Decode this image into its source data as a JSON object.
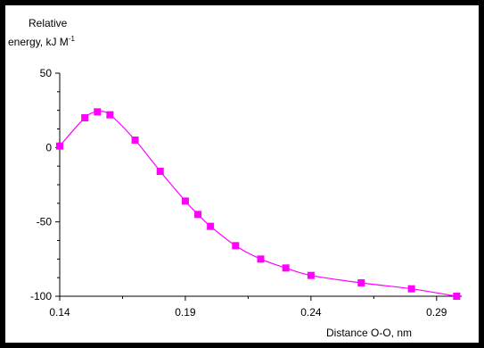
{
  "chart_data": {
    "type": "line",
    "ylabel_line1": "Relative",
    "ylabel_line2_main": "energy, kJ M",
    "ylabel_line2_sup": "-1",
    "xlabel": "Distance O-O, nm",
    "xlim": [
      0.14,
      0.3
    ],
    "ylim": [
      -100,
      50
    ],
    "x_ticks": [
      0.14,
      0.19,
      0.24,
      0.29
    ],
    "x_tick_labels": [
      "0.14",
      "0.19",
      "0.24",
      "0.29"
    ],
    "y_ticks": [
      50,
      0,
      -50,
      -100
    ],
    "y_tick_labels": [
      "50",
      "0",
      "-50",
      "-100"
    ],
    "grid": false,
    "legend": false,
    "series": [
      {
        "color": "#ff00ff",
        "marker": "square",
        "x": [
          0.14,
          0.15,
          0.155,
          0.16,
          0.17,
          0.18,
          0.19,
          0.195,
          0.2,
          0.21,
          0.22,
          0.23,
          0.24,
          0.26,
          0.28,
          0.298
        ],
        "y": [
          1,
          20,
          24,
          22,
          5,
          -16,
          -36,
          -45,
          -53,
          -66,
          -75,
          -81,
          -86,
          -91,
          -95,
          -100
        ]
      }
    ]
  }
}
